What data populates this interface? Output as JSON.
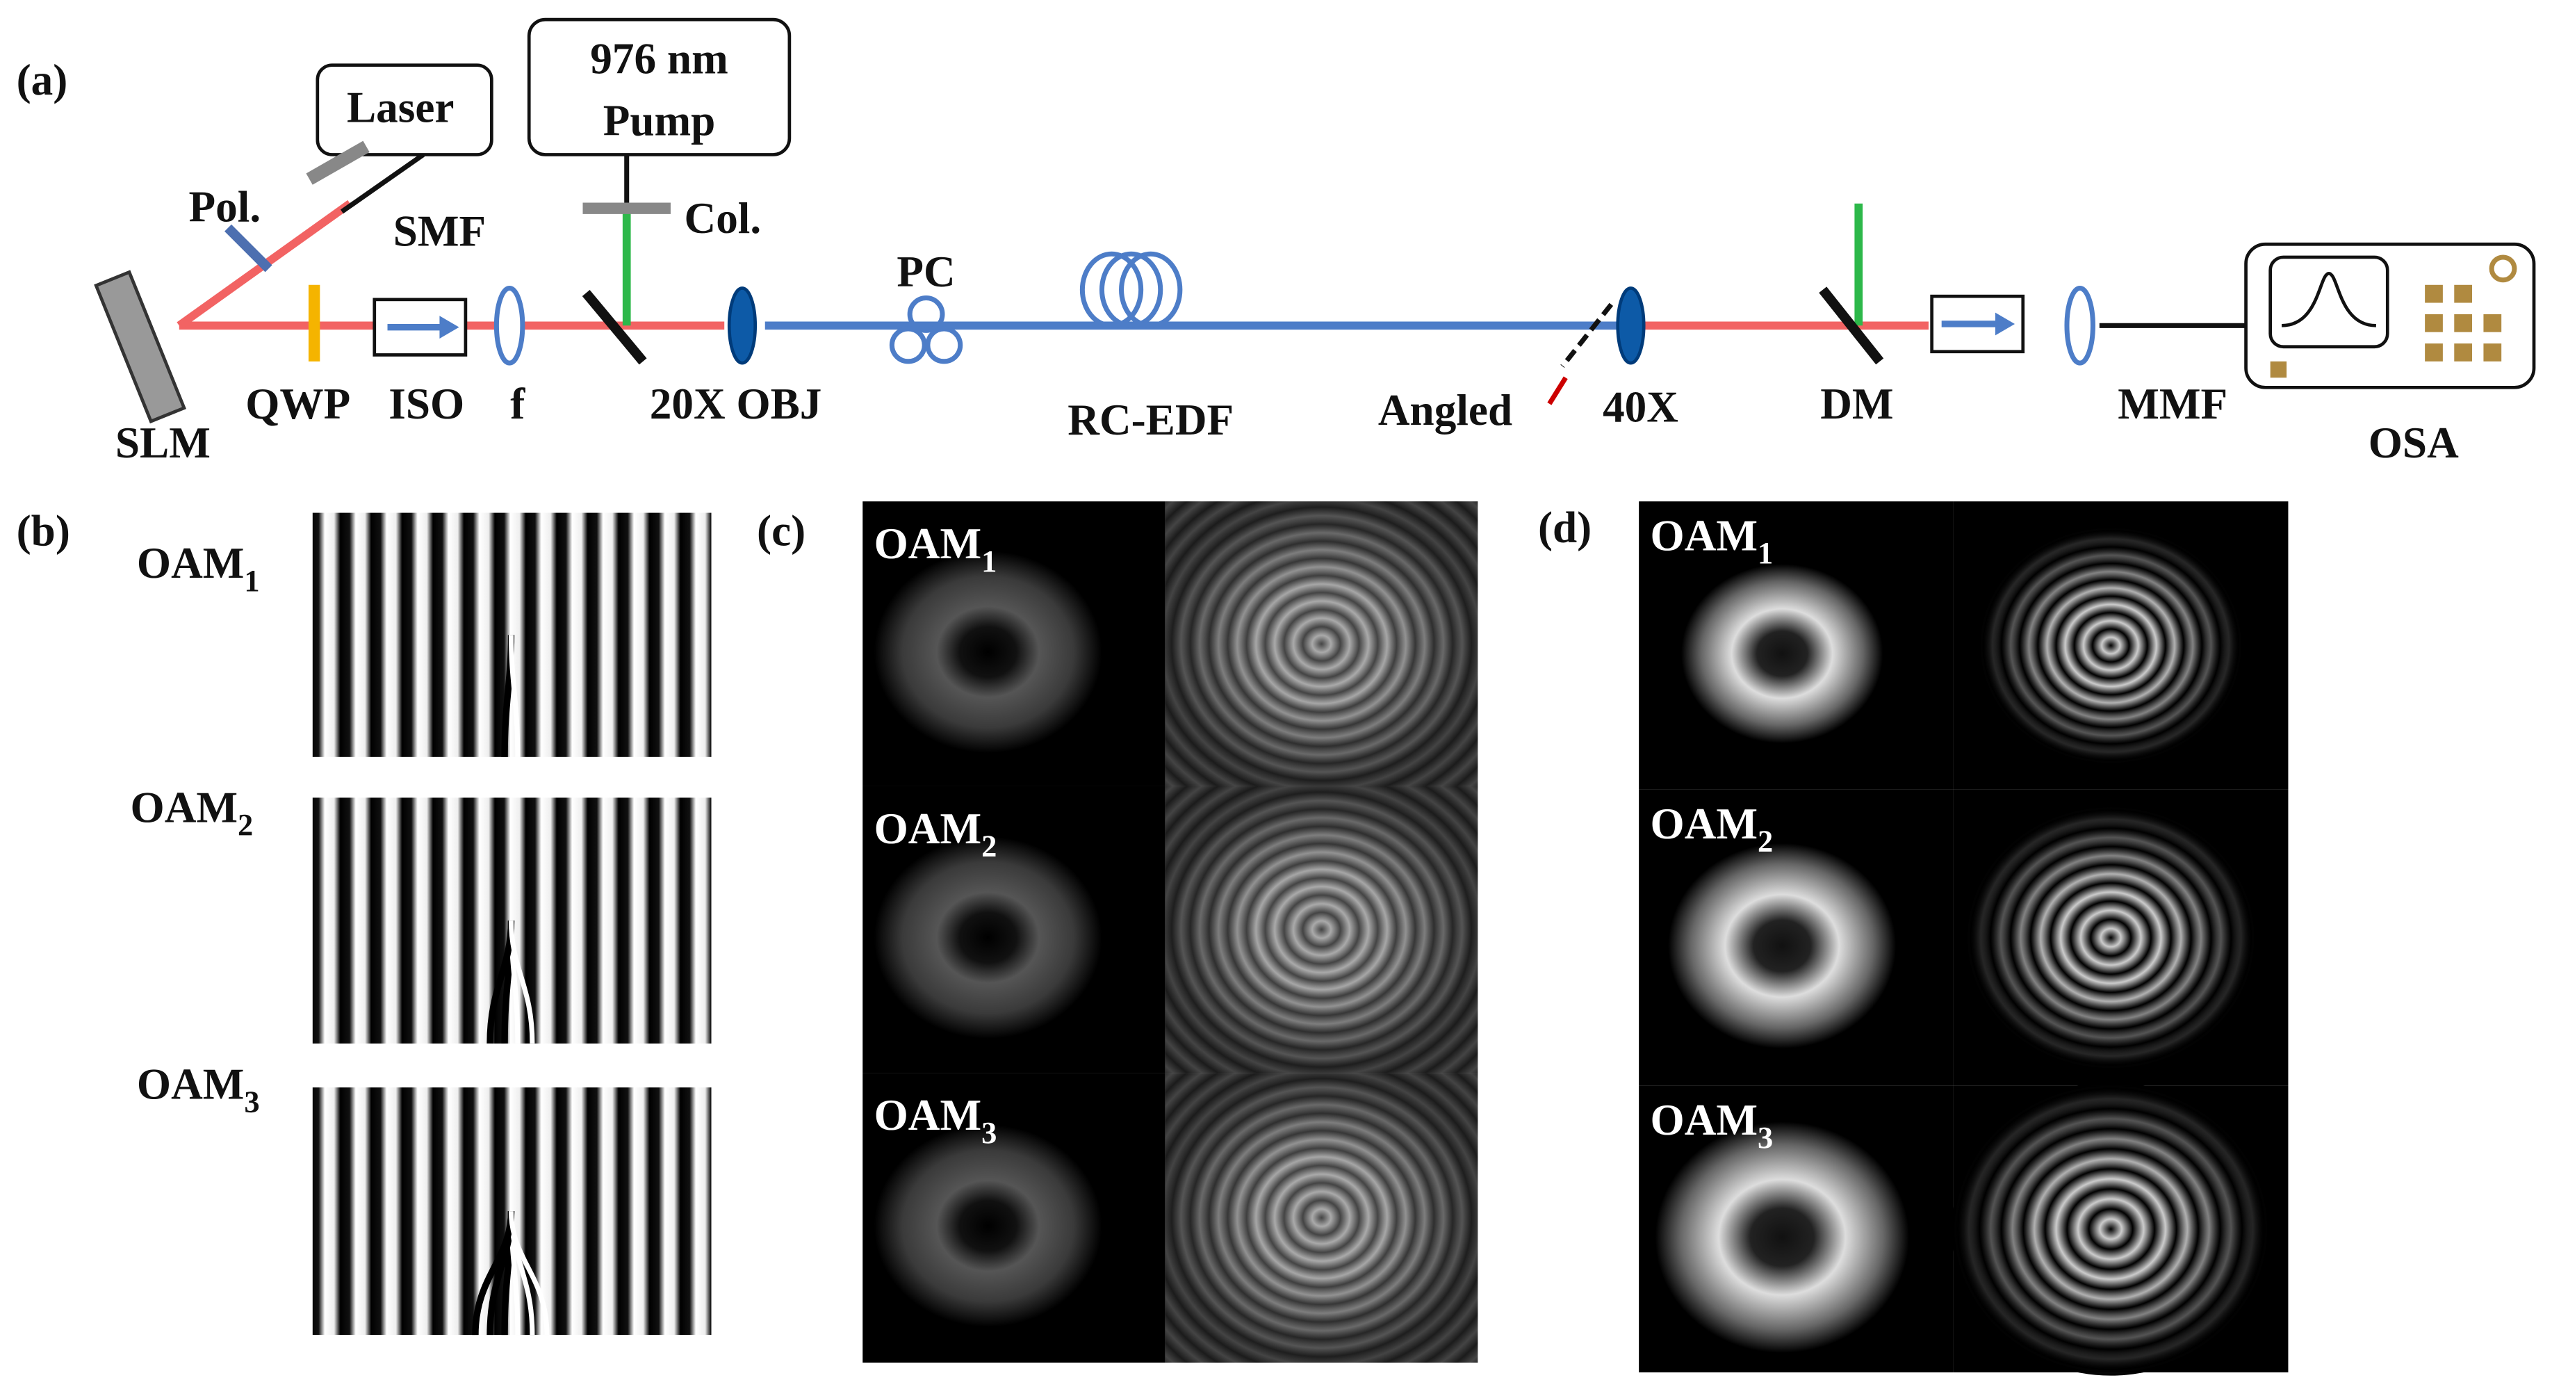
{
  "panels": {
    "a": "(a)",
    "b": "(b)",
    "c": "(c)",
    "d": "(d)"
  },
  "setup": {
    "laser": "Laser",
    "pump": {
      "line1": "976 nm",
      "line2": "Pump"
    },
    "components": [
      "Pol.",
      "SMF",
      "Col.",
      "PC",
      "QWP",
      "ISO",
      "f",
      "SLM",
      "20X OBJ",
      "RC-EDF",
      "Angled",
      "40X",
      "DM",
      "MMF",
      "OSA"
    ]
  },
  "panel_b": {
    "modes": [
      {
        "name": "OAM",
        "order": "1"
      },
      {
        "name": "OAM",
        "order": "2"
      },
      {
        "name": "OAM",
        "order": "3"
      }
    ]
  },
  "panel_c": {
    "modes": [
      {
        "name": "OAM",
        "order": "1"
      },
      {
        "name": "OAM",
        "order": "2"
      },
      {
        "name": "OAM",
        "order": "3"
      }
    ]
  },
  "panel_d": {
    "modes": [
      {
        "name": "OAM",
        "order": "1"
      },
      {
        "name": "OAM",
        "order": "2"
      },
      {
        "name": "OAM",
        "order": "3"
      }
    ]
  }
}
